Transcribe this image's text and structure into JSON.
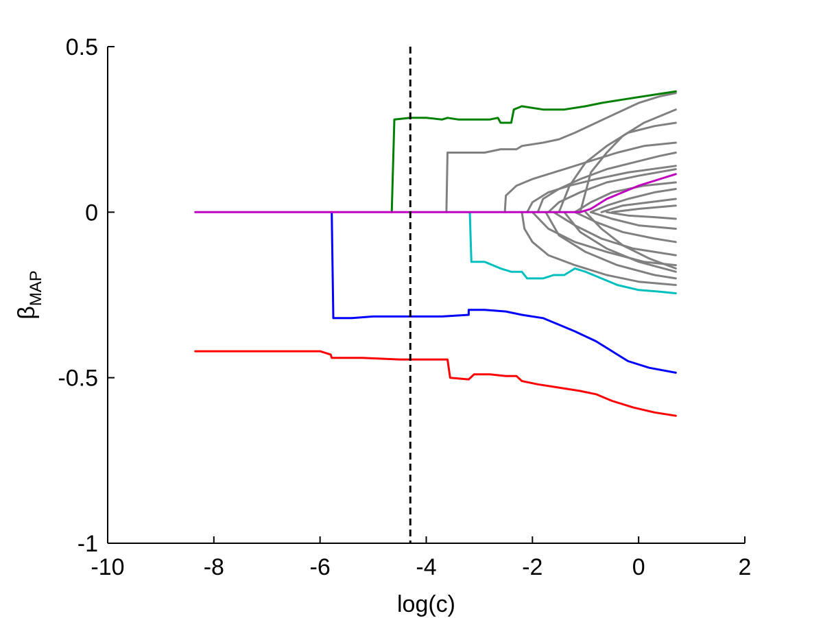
{
  "chart_data": {
    "type": "line",
    "title": "",
    "xlabel": "log(c)",
    "ylabel": "β",
    "ylabel_subscript": "MAP",
    "xlim": [
      -10,
      2
    ],
    "ylim": [
      -1,
      0.5
    ],
    "x_ticks": [
      -10,
      -8,
      -6,
      -4,
      -2,
      0,
      2
    ],
    "y_ticks": [
      -1,
      -0.5,
      0,
      0.5
    ],
    "x_tick_labels": [
      "-10",
      "-8",
      "-6",
      "-4",
      "-2",
      "0",
      "2"
    ],
    "y_tick_labels": [
      "-1",
      "-0.5",
      "0",
      "0.5"
    ],
    "grid": false,
    "legend": "none",
    "reference_line": {
      "x": -4.3,
      "style": "dashed",
      "color": "#000000"
    },
    "series": [
      {
        "color": "#808080",
        "points": [
          [
            -3.62,
            0
          ],
          [
            -3.6,
            0.18
          ],
          [
            -3.5,
            0.18
          ],
          [
            -3.4,
            0.18
          ],
          [
            -3.2,
            0.18
          ],
          [
            -2.9,
            0.18
          ],
          [
            -2.6,
            0.19
          ],
          [
            -2.3,
            0.19
          ],
          [
            -2.2,
            0.2
          ],
          [
            -1.8,
            0.21
          ],
          [
            -1.5,
            0.22
          ],
          [
            -1.2,
            0.24
          ],
          [
            -0.8,
            0.27
          ],
          [
            -0.4,
            0.3
          ],
          [
            0.0,
            0.33
          ],
          [
            0.4,
            0.35
          ],
          [
            0.7,
            0.36
          ]
        ]
      },
      {
        "color": "#808080",
        "points": [
          [
            -1.1,
            0
          ],
          [
            -0.9,
            0.12
          ],
          [
            -0.6,
            0.18
          ],
          [
            -0.3,
            0.23
          ],
          [
            0.1,
            0.27
          ],
          [
            0.4,
            0.29
          ],
          [
            0.7,
            0.31
          ]
        ]
      },
      {
        "color": "#808080",
        "points": [
          [
            -1.5,
            0
          ],
          [
            -1.3,
            0.08
          ],
          [
            -1.0,
            0.15
          ],
          [
            -0.6,
            0.2
          ],
          [
            -0.2,
            0.24
          ],
          [
            0.3,
            0.26
          ],
          [
            0.7,
            0.27
          ]
        ]
      },
      {
        "color": "#808080",
        "points": [
          [
            -2.52,
            0
          ],
          [
            -2.5,
            0.05
          ],
          [
            -2.3,
            0.08
          ],
          [
            -2.0,
            0.1
          ],
          [
            -1.6,
            0.12
          ],
          [
            -1.2,
            0.14
          ],
          [
            -0.8,
            0.16
          ],
          [
            -0.4,
            0.18
          ],
          [
            0.1,
            0.2
          ],
          [
            0.7,
            0.21
          ]
        ]
      },
      {
        "color": "#808080",
        "points": [
          [
            -1.9,
            0
          ],
          [
            -1.8,
            0.04
          ],
          [
            -1.5,
            0.07
          ],
          [
            -1.1,
            0.1
          ],
          [
            -0.6,
            0.13
          ],
          [
            -0.1,
            0.15
          ],
          [
            0.4,
            0.17
          ],
          [
            0.7,
            0.18
          ]
        ]
      },
      {
        "color": "#808080",
        "points": [
          [
            -2.1,
            0
          ],
          [
            -2.0,
            0.03
          ],
          [
            -1.7,
            0.06
          ],
          [
            -1.3,
            0.08
          ],
          [
            -0.8,
            0.1
          ],
          [
            -0.2,
            0.12
          ],
          [
            0.7,
            0.14
          ]
        ]
      },
      {
        "color": "#808080",
        "points": [
          [
            -1.7,
            0
          ],
          [
            -1.5,
            0.03
          ],
          [
            -1.1,
            0.06
          ],
          [
            -0.6,
            0.09
          ],
          [
            0.0,
            0.11
          ],
          [
            0.7,
            0.13
          ]
        ]
      },
      {
        "color": "#808080",
        "points": [
          [
            -1.2,
            0
          ],
          [
            -0.9,
            0.03
          ],
          [
            -0.5,
            0.06
          ],
          [
            0.1,
            0.08
          ],
          [
            0.7,
            0.09
          ]
        ]
      },
      {
        "color": "#808080",
        "points": [
          [
            -0.9,
            0
          ],
          [
            -0.6,
            0.02
          ],
          [
            -0.2,
            0.04
          ],
          [
            0.3,
            0.06
          ],
          [
            0.7,
            0.07
          ]
        ]
      },
      {
        "color": "#808080",
        "points": [
          [
            -0.7,
            0
          ],
          [
            -0.3,
            0.02
          ],
          [
            0.2,
            0.03
          ],
          [
            0.7,
            0.04
          ]
        ]
      },
      {
        "color": "#808080",
        "points": [
          [
            -0.5,
            0
          ],
          [
            0.0,
            0.01
          ],
          [
            0.7,
            0.02
          ]
        ]
      },
      {
        "color": "#808080",
        "points": [
          [
            -0.6,
            0
          ],
          [
            -0.2,
            -0.01
          ],
          [
            0.3,
            -0.015
          ],
          [
            0.7,
            -0.02
          ]
        ]
      },
      {
        "color": "#808080",
        "points": [
          [
            -0.9,
            0
          ],
          [
            -0.5,
            -0.02
          ],
          [
            0.0,
            -0.04
          ],
          [
            0.7,
            -0.05
          ]
        ]
      },
      {
        "color": "#808080",
        "points": [
          [
            -1.2,
            0
          ],
          [
            -0.8,
            -0.03
          ],
          [
            -0.3,
            -0.06
          ],
          [
            0.3,
            -0.08
          ],
          [
            0.7,
            -0.09
          ]
        ]
      },
      {
        "color": "#808080",
        "points": [
          [
            -1.6,
            0
          ],
          [
            -1.2,
            -0.04
          ],
          [
            -0.7,
            -0.08
          ],
          [
            -0.1,
            -0.11
          ],
          [
            0.7,
            -0.13
          ]
        ]
      },
      {
        "color": "#808080",
        "points": [
          [
            -2.0,
            0
          ],
          [
            -1.7,
            -0.05
          ],
          [
            -1.2,
            -0.09
          ],
          [
            -0.6,
            -0.12
          ],
          [
            0.1,
            -0.15
          ],
          [
            0.7,
            -0.16
          ]
        ]
      },
      {
        "color": "#808080",
        "points": [
          [
            -1.4,
            0
          ],
          [
            -1.1,
            -0.06
          ],
          [
            -0.6,
            -0.11
          ],
          [
            0.0,
            -0.15
          ],
          [
            0.7,
            -0.18
          ]
        ]
      },
      {
        "color": "#808080",
        "points": [
          [
            -1.75,
            0
          ],
          [
            -1.5,
            -0.07
          ],
          [
            -1.0,
            -0.12
          ],
          [
            -0.4,
            -0.16
          ],
          [
            0.3,
            -0.19
          ],
          [
            0.7,
            -0.2
          ]
        ]
      },
      {
        "color": "#808080",
        "points": [
          [
            -2.2,
            0
          ],
          [
            -2.15,
            -0.05
          ],
          [
            -2.0,
            -0.09
          ],
          [
            -1.7,
            -0.13
          ],
          [
            -1.2,
            -0.16
          ],
          [
            -0.6,
            -0.19
          ],
          [
            0.0,
            -0.21
          ],
          [
            0.7,
            -0.22
          ]
        ]
      },
      {
        "color": "#808080",
        "points": [
          [
            -1.0,
            0
          ],
          [
            -0.7,
            -0.05
          ],
          [
            -0.3,
            -0.1
          ],
          [
            0.2,
            -0.14
          ],
          [
            0.7,
            -0.17
          ]
        ]
      },
      {
        "color": "#008000",
        "points": [
          [
            -4.65,
            0
          ],
          [
            -4.6,
            0.28
          ],
          [
            -4.3,
            0.285
          ],
          [
            -4.0,
            0.285
          ],
          [
            -3.7,
            0.28
          ],
          [
            -3.6,
            0.285
          ],
          [
            -3.4,
            0.28
          ],
          [
            -3.2,
            0.28
          ],
          [
            -3.0,
            0.28
          ],
          [
            -2.9,
            0.28
          ],
          [
            -2.8,
            0.28
          ],
          [
            -2.65,
            0.285
          ],
          [
            -2.6,
            0.27
          ],
          [
            -2.4,
            0.27
          ],
          [
            -2.35,
            0.31
          ],
          [
            -2.2,
            0.32
          ],
          [
            -1.8,
            0.31
          ],
          [
            -1.4,
            0.31
          ],
          [
            -1.0,
            0.32
          ],
          [
            -0.7,
            0.33
          ],
          [
            -0.3,
            0.34
          ],
          [
            0.1,
            0.35
          ],
          [
            0.5,
            0.36
          ],
          [
            0.7,
            0.365
          ]
        ]
      },
      {
        "color": "#00BFBF",
        "points": [
          [
            -3.18,
            0
          ],
          [
            -3.15,
            -0.15
          ],
          [
            -2.9,
            -0.15
          ],
          [
            -2.6,
            -0.17
          ],
          [
            -2.4,
            -0.18
          ],
          [
            -2.2,
            -0.18
          ],
          [
            -2.1,
            -0.2
          ],
          [
            -1.8,
            -0.2
          ],
          [
            -1.6,
            -0.19
          ],
          [
            -1.4,
            -0.19
          ],
          [
            -1.2,
            -0.17
          ],
          [
            -1.0,
            -0.18
          ],
          [
            -0.7,
            -0.2
          ],
          [
            -0.4,
            -0.22
          ],
          [
            0.0,
            -0.235
          ],
          [
            0.4,
            -0.24
          ],
          [
            0.7,
            -0.245
          ]
        ]
      },
      {
        "color": "#0000FF",
        "points": [
          [
            -5.78,
            0
          ],
          [
            -5.75,
            -0.32
          ],
          [
            -5.4,
            -0.32
          ],
          [
            -5.0,
            -0.315
          ],
          [
            -4.5,
            -0.315
          ],
          [
            -4.0,
            -0.315
          ],
          [
            -3.7,
            -0.315
          ],
          [
            -3.2,
            -0.31
          ],
          [
            -3.2,
            -0.295
          ],
          [
            -2.9,
            -0.295
          ],
          [
            -2.5,
            -0.3
          ],
          [
            -2.2,
            -0.31
          ],
          [
            -1.8,
            -0.32
          ],
          [
            -1.5,
            -0.34
          ],
          [
            -1.2,
            -0.36
          ],
          [
            -0.8,
            -0.39
          ],
          [
            -0.5,
            -0.42
          ],
          [
            -0.2,
            -0.45
          ],
          [
            0.2,
            -0.47
          ],
          [
            0.7,
            -0.485
          ]
        ]
      },
      {
        "color": "#FF0000",
        "points": [
          [
            -8.35,
            -0.42
          ],
          [
            -7.5,
            -0.42
          ],
          [
            -6.5,
            -0.42
          ],
          [
            -6.0,
            -0.42
          ],
          [
            -5.8,
            -0.43
          ],
          [
            -5.78,
            -0.44
          ],
          [
            -5.2,
            -0.44
          ],
          [
            -4.5,
            -0.445
          ],
          [
            -4.0,
            -0.445
          ],
          [
            -3.6,
            -0.445
          ],
          [
            -3.55,
            -0.5
          ],
          [
            -3.2,
            -0.505
          ],
          [
            -3.1,
            -0.49
          ],
          [
            -2.8,
            -0.49
          ],
          [
            -2.5,
            -0.495
          ],
          [
            -2.3,
            -0.495
          ],
          [
            -2.2,
            -0.51
          ],
          [
            -1.9,
            -0.52
          ],
          [
            -1.5,
            -0.53
          ],
          [
            -1.1,
            -0.54
          ],
          [
            -0.8,
            -0.55
          ],
          [
            -0.5,
            -0.57
          ],
          [
            -0.1,
            -0.59
          ],
          [
            0.3,
            -0.605
          ],
          [
            0.7,
            -0.615
          ]
        ]
      },
      {
        "color": "#BF00BF",
        "points": [
          [
            -8.35,
            0
          ],
          [
            -4.0,
            0
          ],
          [
            -2.0,
            0
          ],
          [
            -1.1,
            0
          ],
          [
            -0.9,
            0.01
          ],
          [
            -0.6,
            0.04
          ],
          [
            -0.3,
            0.06
          ],
          [
            0.0,
            0.08
          ],
          [
            0.3,
            0.095
          ],
          [
            0.7,
            0.115
          ]
        ]
      }
    ]
  }
}
